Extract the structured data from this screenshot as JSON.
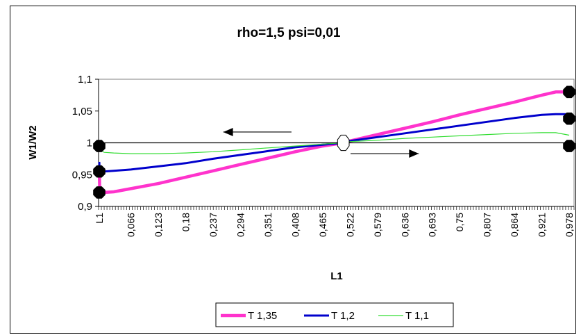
{
  "chart_data": {
    "type": "line",
    "title": "rho=1,5     psi=0,01",
    "xlabel": "L1",
    "ylabel": "W1/W2",
    "ylim": [
      0.9,
      1.1
    ],
    "xlim": [
      0,
      1
    ],
    "grid": false,
    "legend_position": "bottom",
    "y_tick_labels": [
      "0,9",
      "0,95",
      "1",
      "1,05",
      "1,1"
    ],
    "y_tick_values": [
      0.9,
      0.95,
      1.0,
      1.05,
      1.1
    ],
    "x_tick_labels": [
      "L1",
      "0,066",
      "0,123",
      "0,18",
      "0,237",
      "0,294",
      "0,351",
      "0,408",
      "0,465",
      "0,522",
      "0,579",
      "0,636",
      "0,693",
      "0,75",
      "0,807",
      "0,864",
      "0,921",
      "0,978"
    ],
    "x_tick_values": [
      0,
      0.066,
      0.123,
      0.18,
      0.237,
      0.294,
      0.351,
      0.408,
      0.465,
      0.522,
      0.579,
      0.636,
      0.693,
      0.75,
      0.807,
      0.864,
      0.921,
      0.978
    ],
    "series": [
      {
        "name": "T 1,35",
        "color": "#ff33cc",
        "x": [
          0,
          0.001,
          0.01,
          0.03,
          0.066,
          0.123,
          0.18,
          0.237,
          0.294,
          0.351,
          0.408,
          0.465,
          0.508,
          0.522,
          0.579,
          0.636,
          0.693,
          0.75,
          0.807,
          0.864,
          0.921,
          0.95,
          0.978
        ],
        "y": [
          0.96,
          0.922,
          0.922,
          0.923,
          0.928,
          0.936,
          0.946,
          0.956,
          0.966,
          0.976,
          0.986,
          0.995,
          1.0,
          1.003,
          1.013,
          1.023,
          1.033,
          1.044,
          1.054,
          1.064,
          1.075,
          1.08,
          1.08
        ]
      },
      {
        "name": "T 1,2",
        "color": "#0000cc",
        "x": [
          0,
          0.001,
          0.01,
          0.03,
          0.066,
          0.123,
          0.18,
          0.237,
          0.294,
          0.351,
          0.408,
          0.465,
          0.508,
          0.522,
          0.579,
          0.636,
          0.693,
          0.75,
          0.807,
          0.864,
          0.921,
          0.95,
          0.978
        ],
        "y": [
          0.97,
          0.955,
          0.955,
          0.956,
          0.958,
          0.963,
          0.968,
          0.975,
          0.981,
          0.987,
          0.993,
          0.997,
          1.0,
          1.003,
          1.009,
          1.015,
          1.021,
          1.027,
          1.033,
          1.039,
          1.044,
          1.045,
          1.045
        ]
      },
      {
        "name": "T 1,1",
        "color": "#33dd33",
        "x": [
          0,
          0.001,
          0.01,
          0.03,
          0.066,
          0.123,
          0.18,
          0.237,
          0.294,
          0.351,
          0.408,
          0.465,
          0.508,
          0.522,
          0.579,
          0.636,
          0.693,
          0.75,
          0.807,
          0.864,
          0.921,
          0.95,
          0.978
        ],
        "y": [
          1.0,
          0.99,
          0.985,
          0.984,
          0.983,
          0.983,
          0.984,
          0.986,
          0.989,
          0.992,
          0.995,
          0.998,
          1.0,
          1.002,
          1.004,
          1.007,
          1.009,
          1.011,
          1.013,
          1.015,
          1.016,
          1.016,
          1.012
        ]
      },
      {
        "name": "",
        "color": "#000000",
        "x": [
          0,
          0.978
        ],
        "y": [
          1.0,
          1.0
        ]
      }
    ],
    "markers": [
      {
        "x": 0,
        "y": 0.995,
        "shape": "octagon",
        "fill": "#000000"
      },
      {
        "x": 0,
        "y": 0.955,
        "shape": "octagon",
        "fill": "#000000"
      },
      {
        "x": 0,
        "y": 0.922,
        "shape": "octagon",
        "fill": "#000000"
      },
      {
        "x": 0.978,
        "y": 1.08,
        "shape": "octagon",
        "fill": "#000000"
      },
      {
        "x": 0.978,
        "y": 1.038,
        "shape": "octagon",
        "fill": "#000000"
      },
      {
        "x": 0.978,
        "y": 0.995,
        "shape": "octagon",
        "fill": "#000000"
      },
      {
        "x": 0.508,
        "y": 1.0,
        "shape": "octagon",
        "fill": "#ffffff"
      }
    ],
    "arrows": [
      {
        "from_x": 0.4,
        "to_x": 0.258,
        "y": 1.017
      },
      {
        "from_x": 0.523,
        "to_x": 0.665,
        "y": 0.983
      }
    ]
  }
}
